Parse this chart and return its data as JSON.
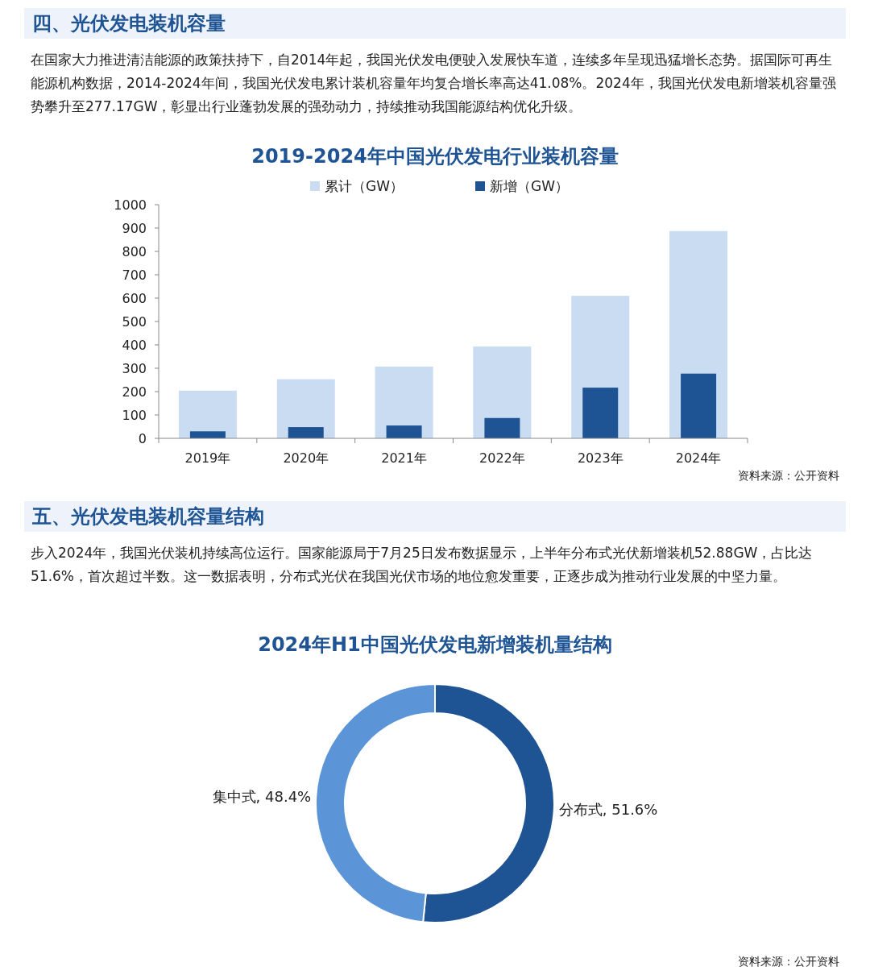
{
  "chart_data": [
    {
      "type": "bar",
      "title": "2019-2024年中国光伏发电行业装机容量",
      "annotations": [
        "四、光伏发电装机容量",
        "在国家大力推进清洁能源的政策扶持下，自2014年起，我国光伏发电便驶入发展快车道，连续多年呈现迅猛增长态势。据国际可再生能源机构数据，2014-2024年间，我国光伏发电累计装机容量年均复合增长率高达41.08%。2024年，我国光伏发电新增装机容量强势攀升至277.17GW，彰显出行业蓬勃发展的强劲动力，持续推动我国能源结构优化升级。",
        "资料来源：公开资料"
      ],
      "categories": [
        "2019年",
        "2020年",
        "2021年",
        "2022年",
        "2023年",
        "2024年"
      ],
      "series": [
        {
          "name": "累计（GW）",
          "color": "#c9dcf2",
          "values": [
            204,
            253,
            307,
            393,
            610,
            887
          ]
        },
        {
          "name": "新增（GW）",
          "color": "#1f5494",
          "values": [
            30,
            48,
            55,
            87,
            217,
            277
          ]
        }
      ],
      "ylim": [
        0,
        1000
      ],
      "yticks": [
        0,
        100,
        200,
        300,
        400,
        500,
        600,
        700,
        800,
        900,
        1000
      ],
      "legend": "top",
      "grid": false
    },
    {
      "type": "donut",
      "title": "2024年H1中国光伏发电新增装机量结构",
      "annotations": [
        "五、光伏发电装机容量结构",
        "步入2024年，我国光伏装机持续高位运行。国家能源局于7月25日发布数据显示，上半年分布式光伏新增装机52.88GW，占比达51.6%，首次超过半数。这一数据表明，分布式光伏在我国光伏市场的地位愈发重要，正逐步成为推动行业发展的中坚力量。",
        "资料来源：公开资料"
      ],
      "categories": [
        "分布式",
        "集中式"
      ],
      "values": [
        51.6,
        48.4
      ],
      "value_labels": [
        "51.6%",
        "48.4%"
      ],
      "colors": [
        "#1f5494",
        "#5b95d8"
      ]
    }
  ]
}
